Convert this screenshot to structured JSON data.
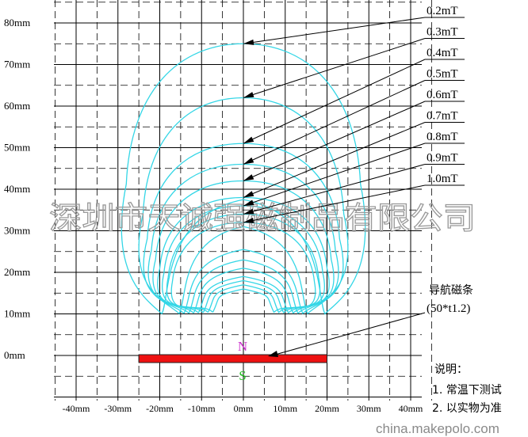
{
  "y_axis_labels": [
    "80mm",
    "70mm",
    "60mm",
    "50mm",
    "40mm",
    "30mm",
    "20mm",
    "10mm",
    "0mm"
  ],
  "x_axis_labels": [
    "-40mm",
    "-30mm",
    "-20mm",
    "-10mm",
    "0mm",
    "10mm",
    "20mm",
    "30mm",
    "40mm"
  ],
  "field_contours": [
    {
      "label": "0.2mT",
      "peak_height_mm": 75,
      "outer_x_mm": 28
    },
    {
      "label": "0.3mT",
      "peak_height_mm": 62,
      "outer_x_mm": 24
    },
    {
      "label": "0.4mT",
      "peak_height_mm": 51,
      "outer_x_mm": 23
    },
    {
      "label": "0.5mT",
      "peak_height_mm": 46,
      "outer_x_mm": 22
    },
    {
      "label": "0.6mT",
      "peak_height_mm": 42,
      "outer_x_mm": 21
    },
    {
      "label": "0.7mT",
      "peak_height_mm": 38,
      "outer_x_mm": 20
    },
    {
      "label": "0.8mT",
      "peak_height_mm": 36,
      "outer_x_mm": 19
    },
    {
      "label": "0.9mT",
      "peak_height_mm": 34,
      "outer_x_mm": 18
    },
    {
      "label": "1.0mT",
      "peak_height_mm": 32,
      "outer_x_mm": 17
    }
  ],
  "contour_color": "#33d6e6",
  "magnet": {
    "label": "导航磁条",
    "size": "(50*t1.2)",
    "x_range_mm": [
      -25,
      20
    ],
    "color": "#ee1111",
    "north_label": "N",
    "north_color": "#cc33cc",
    "south_label": "S",
    "south_color": "#22bb22"
  },
  "notes": {
    "title": "说明：",
    "line1": "1. 常温下测试",
    "line2": "2. 以实物为准"
  },
  "watermark": "深圳市天诚强磁制品有限公司",
  "site": "china.makepolo.com"
}
